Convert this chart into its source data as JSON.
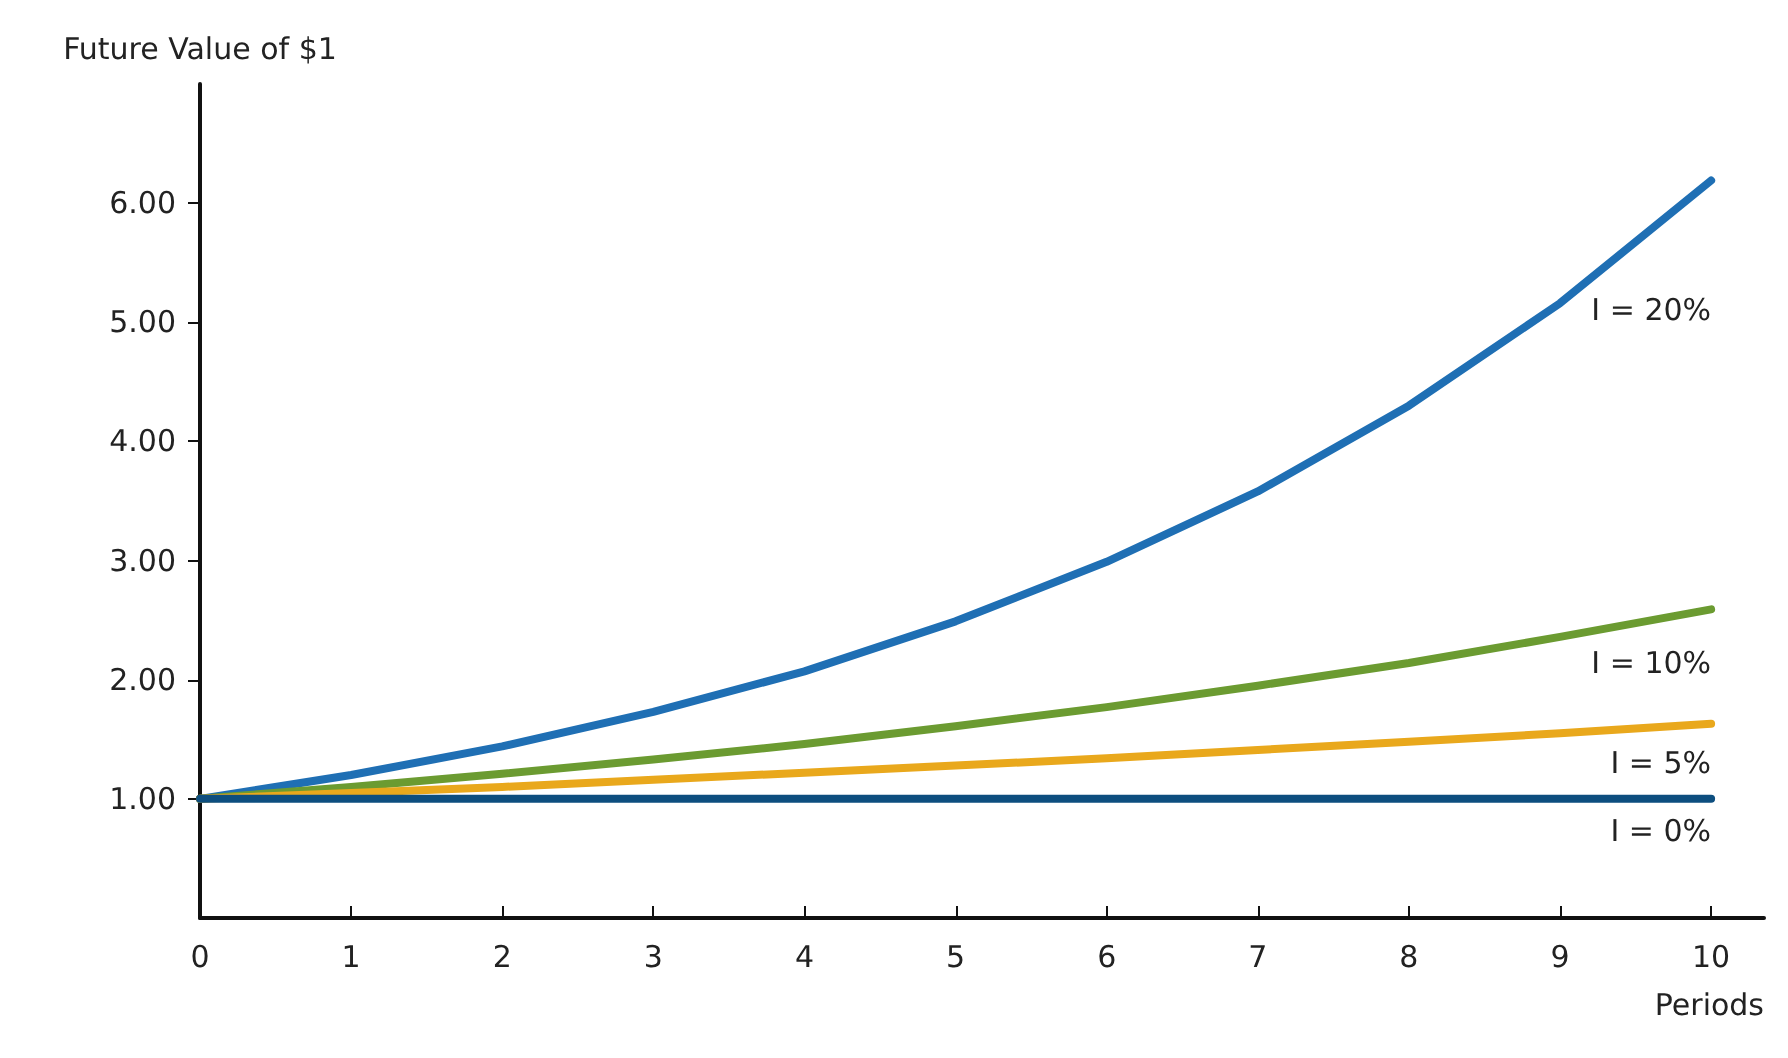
{
  "chart_data": {
    "type": "line",
    "ylabel": "Future Value of $1",
    "xlabel": "Periods",
    "x": [
      0,
      1,
      2,
      3,
      4,
      5,
      6,
      7,
      8,
      9,
      10
    ],
    "series": [
      {
        "name": "I = 20%",
        "color": "#1f6fb4",
        "values": [
          1,
          1.2,
          1.44,
          1.73,
          2.07,
          2.49,
          2.99,
          3.58,
          4.3,
          5.16,
          6.19
        ]
      },
      {
        "name": "I = 10%",
        "color": "#6b9b31",
        "values": [
          1,
          1.1,
          1.21,
          1.33,
          1.46,
          1.61,
          1.77,
          1.95,
          2.14,
          2.36,
          2.59
        ]
      },
      {
        "name": "I = 5%",
        "color": "#e9a81c",
        "values": [
          1,
          1.05,
          1.1,
          1.16,
          1.22,
          1.28,
          1.34,
          1.41,
          1.48,
          1.55,
          1.63
        ]
      },
      {
        "name": "I = 0%",
        "color": "#0d4e7f",
        "values": [
          1,
          1,
          1,
          1,
          1,
          1,
          1,
          1,
          1,
          1,
          1
        ]
      }
    ],
    "xlim": [
      0,
      10.35
    ],
    "ylim": [
      0,
      7
    ],
    "xticks": [
      0,
      1,
      2,
      3,
      4,
      5,
      6,
      7,
      8,
      9,
      10
    ],
    "yticks": [
      {
        "value": 1,
        "label": "1.00"
      },
      {
        "value": 2,
        "label": "2.00"
      },
      {
        "value": 3,
        "label": "3.00"
      },
      {
        "value": 4,
        "label": "4.00"
      },
      {
        "value": 5,
        "label": "5.00"
      },
      {
        "value": 6,
        "label": "6.00"
      }
    ],
    "grid": false,
    "legend": false,
    "line_style": "solid"
  }
}
